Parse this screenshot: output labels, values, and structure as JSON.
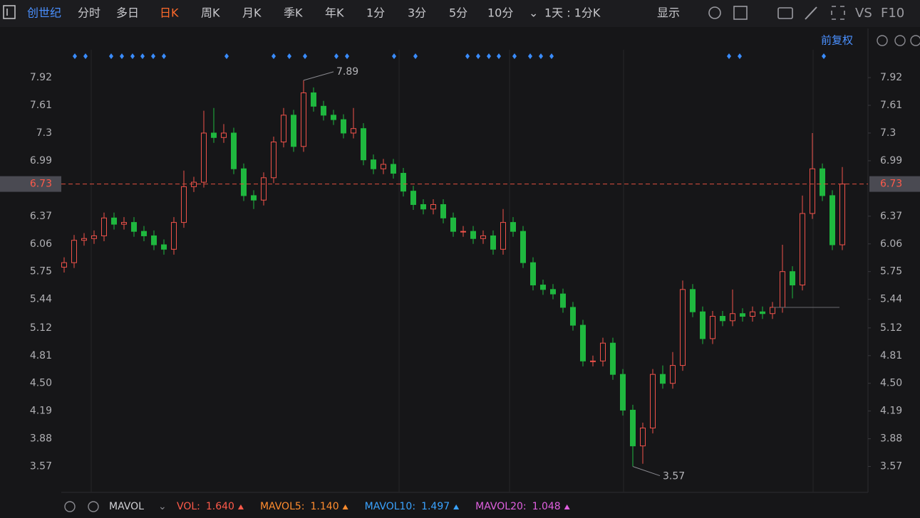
{
  "toolbar": {
    "symbol": "创世纪",
    "tabs": [
      "分时",
      "多日",
      "日K",
      "周K",
      "月K",
      "季K",
      "年K",
      "1分",
      "3分",
      "5分",
      "10分"
    ],
    "active": "日K",
    "interval": "1天 : 1分K",
    "display": "显示",
    "vs": "VS",
    "f10": "F10",
    "adjust": "前复权"
  },
  "indicator": {
    "name": "MAVOL",
    "items": [
      {
        "name": "VOL:",
        "value": "1.640",
        "color": "#ff5a4a"
      },
      {
        "name": "MAVOL5:",
        "value": "1.140",
        "color": "#ff8c2e"
      },
      {
        "name": "MAVOL10:",
        "value": "1.497",
        "color": "#3aa3ff"
      },
      {
        "name": "MAVOL20:",
        "value": "1.048",
        "color": "#e060e0"
      }
    ]
  },
  "chart_data": {
    "type": "candlestick",
    "open": [
      5.8,
      5.85,
      6.1,
      6.12,
      6.15,
      6.35,
      6.28,
      6.3,
      6.2,
      6.15,
      6.05,
      6.0,
      6.3,
      6.7,
      6.75,
      7.3,
      7.25,
      7.3,
      6.9,
      6.6,
      6.55,
      6.8,
      7.2,
      7.5,
      7.15,
      7.75,
      7.6,
      7.5,
      7.45,
      7.3,
      7.35,
      7.0,
      6.9,
      6.95,
      6.85,
      6.65,
      6.5,
      6.45,
      6.5,
      6.35,
      6.2,
      6.2,
      6.12,
      6.15,
      6.0,
      6.3,
      6.2,
      5.85,
      5.6,
      5.55,
      5.5,
      5.35,
      5.15,
      4.75,
      4.75,
      4.95,
      4.6,
      4.2,
      3.8,
      4.0,
      4.6,
      4.5,
      4.7,
      5.55,
      5.3,
      5.0,
      5.25,
      5.2,
      5.28,
      5.25,
      5.3,
      5.28,
      5.35,
      5.75,
      5.6,
      6.4,
      6.9,
      6.6,
      6.05
    ],
    "high": [
      5.91,
      6.16,
      6.18,
      6.21,
      6.41,
      6.41,
      6.36,
      6.36,
      6.26,
      6.21,
      6.11,
      6.36,
      6.88,
      6.81,
      7.55,
      7.58,
      7.4,
      7.36,
      6.96,
      6.66,
      6.86,
      7.26,
      7.58,
      7.56,
      7.89,
      7.81,
      7.66,
      7.56,
      7.51,
      7.58,
      7.41,
      7.06,
      7.01,
      7.01,
      6.91,
      6.71,
      6.56,
      6.56,
      6.56,
      6.41,
      6.26,
      6.26,
      6.21,
      6.21,
      6.45,
      6.36,
      6.26,
      5.91,
      5.66,
      5.61,
      5.56,
      5.41,
      5.21,
      4.81,
      5.01,
      5.01,
      4.66,
      4.26,
      4.06,
      4.66,
      4.7,
      4.85,
      5.65,
      5.61,
      5.36,
      5.31,
      5.31,
      5.55,
      5.34,
      5.36,
      5.36,
      5.41,
      6.05,
      5.81,
      6.6,
      7.3,
      6.96,
      6.66,
      6.92
    ],
    "low": [
      5.74,
      5.79,
      6.04,
      6.06,
      6.09,
      6.22,
      6.22,
      6.14,
      6.09,
      5.99,
      5.94,
      5.94,
      6.24,
      6.64,
      6.69,
      7.19,
      7.19,
      6.84,
      6.54,
      6.45,
      6.49,
      6.74,
      7.14,
      7.09,
      7.09,
      7.54,
      7.44,
      7.39,
      7.24,
      7.24,
      6.94,
      6.84,
      6.84,
      6.79,
      6.59,
      6.44,
      6.39,
      6.39,
      6.29,
      6.14,
      6.14,
      6.06,
      6.06,
      5.94,
      5.94,
      6.14,
      5.79,
      5.54,
      5.49,
      5.44,
      5.29,
      5.09,
      4.69,
      4.69,
      4.69,
      4.54,
      4.14,
      3.57,
      3.6,
      3.94,
      4.44,
      4.44,
      4.64,
      5.24,
      4.94,
      4.94,
      5.14,
      5.14,
      5.19,
      5.19,
      5.22,
      5.22,
      5.29,
      5.45,
      5.54,
      6.34,
      6.54,
      5.99,
      5.99
    ],
    "close": [
      5.85,
      6.1,
      6.12,
      6.15,
      6.35,
      6.28,
      6.3,
      6.2,
      6.15,
      6.05,
      6.0,
      6.3,
      6.7,
      6.75,
      7.3,
      7.25,
      7.3,
      6.9,
      6.6,
      6.55,
      6.8,
      7.2,
      7.5,
      7.15,
      7.75,
      7.6,
      7.5,
      7.45,
      7.3,
      7.35,
      7.0,
      6.9,
      6.95,
      6.85,
      6.65,
      6.5,
      6.45,
      6.5,
      6.35,
      6.2,
      6.2,
      6.12,
      6.15,
      6.0,
      6.3,
      6.2,
      5.85,
      5.6,
      5.55,
      5.5,
      5.35,
      5.15,
      4.75,
      4.75,
      4.95,
      4.6,
      4.2,
      3.8,
      4.0,
      4.6,
      4.5,
      4.7,
      5.55,
      5.3,
      5.0,
      5.25,
      5.2,
      5.28,
      5.25,
      5.3,
      5.28,
      5.35,
      5.75,
      5.6,
      6.4,
      6.9,
      6.6,
      6.05,
      6.73
    ],
    "up_color": "#f0524a",
    "down_color": "#1fb83f",
    "ylim": [
      3.28,
      8.47
    ],
    "yticks": [
      7.92,
      7.61,
      7.3,
      6.99,
      6.37,
      6.06,
      5.75,
      5.44,
      5.12,
      4.81,
      {
        "value": 4.5,
        "label": "4.50"
      },
      4.19,
      3.88,
      3.57
    ],
    "last_price": 6.73,
    "high_label": 7.89,
    "low_label": 3.57
  }
}
